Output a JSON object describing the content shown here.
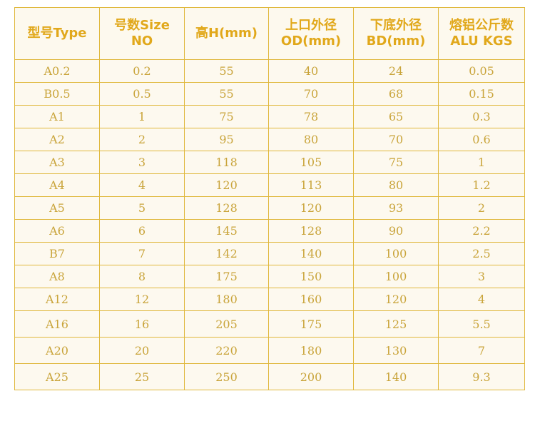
{
  "table": {
    "headers": [
      [
        "型号Type"
      ],
      [
        "号数Size",
        "NO"
      ],
      [
        "高H(mm)"
      ],
      [
        "上口外径",
        "OD(mm)"
      ],
      [
        "下底外径",
        "BD(mm)"
      ],
      [
        "熔铝公斤数",
        "ALU KGS"
      ]
    ],
    "rows": [
      [
        "A0.2",
        "0.2",
        "55",
        "40",
        "24",
        "0.05"
      ],
      [
        "B0.5",
        "0.5",
        "55",
        "70",
        "68",
        "0.15"
      ],
      [
        "A1",
        "1",
        "75",
        "78",
        "65",
        "0.3"
      ],
      [
        "A2",
        "2",
        "95",
        "80",
        "70",
        "0.6"
      ],
      [
        "A3",
        "3",
        "118",
        "105",
        "75",
        "1"
      ],
      [
        "A4",
        "4",
        "120",
        "113",
        "80",
        "1.2"
      ],
      [
        "A5",
        "5",
        "128",
        "120",
        "93",
        "2"
      ],
      [
        "A6",
        "6",
        "145",
        "128",
        "90",
        "2.2"
      ],
      [
        "B7",
        "7",
        "142",
        "140",
        "100",
        "2.5"
      ],
      [
        "A8",
        "8",
        "175",
        "150",
        "100",
        "3"
      ],
      [
        "A12",
        "12",
        "180",
        "160",
        "120",
        "4"
      ],
      [
        "A16",
        "16",
        "205",
        "175",
        "125",
        "5.5"
      ],
      [
        "A20",
        "20",
        "220",
        "180",
        "130",
        "7"
      ],
      [
        "A25",
        "25",
        "250",
        "200",
        "140",
        "9.3"
      ]
    ]
  },
  "colors": {
    "border": "#e0b83c",
    "header_text": "#e1a81b",
    "cell_text": "#c9a43a",
    "background": "#fdf9ef"
  }
}
